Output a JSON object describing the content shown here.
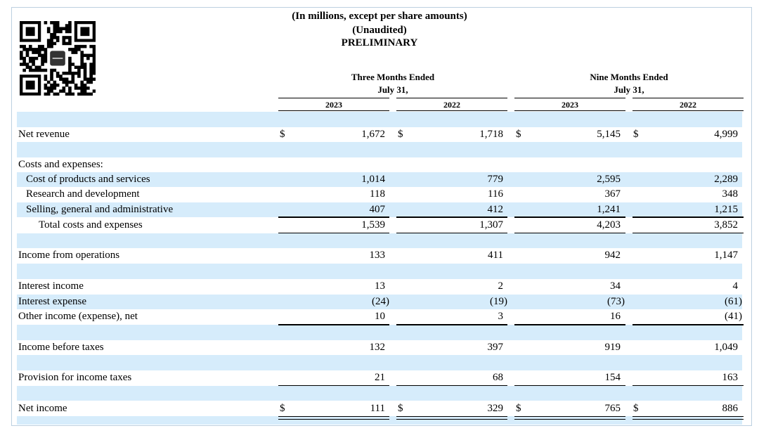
{
  "header": {
    "line1": "(In millions, except per share amounts)",
    "line2": "(Unaudited)",
    "line3": "PRELIMINARY"
  },
  "columns": {
    "three_months": "Three Months Ended",
    "three_months_date": "July 31,",
    "nine_months": "Nine Months Ended",
    "nine_months_date": "July 31,",
    "years": [
      "2023",
      "2022",
      "2023",
      "2022"
    ]
  },
  "currency_symbol": "$",
  "rows": [
    {
      "label": "Net revenue",
      "values": [
        "1,672",
        "1,718",
        "5,145",
        "4,999"
      ]
    },
    {
      "label": "Costs and expenses:"
    },
    {
      "label": "Cost of products and services",
      "values": [
        "1,014",
        "779",
        "2,595",
        "2,289"
      ]
    },
    {
      "label": "Research and development",
      "values": [
        "118",
        "116",
        "367",
        "348"
      ]
    },
    {
      "label": "Selling, general and administrative",
      "values": [
        "407",
        "412",
        "1,241",
        "1,215"
      ]
    },
    {
      "label": "Total costs and expenses",
      "values": [
        "1,539",
        "1,307",
        "4,203",
        "3,852"
      ]
    },
    {
      "label": "Income from operations",
      "values": [
        "133",
        "411",
        "942",
        "1,147"
      ]
    },
    {
      "label": "Interest income",
      "values": [
        "13",
        "2",
        "34",
        "4"
      ]
    },
    {
      "label": "Interest expense",
      "values": [
        "(24)",
        "(19)",
        "(73)",
        "(61)"
      ]
    },
    {
      "label": "Other income (expense), net",
      "values": [
        "10",
        "3",
        "16",
        "(41)"
      ]
    },
    {
      "label": "Income before taxes",
      "values": [
        "132",
        "397",
        "919",
        "1,049"
      ]
    },
    {
      "label": "Provision for income taxes",
      "values": [
        "21",
        "68",
        "154",
        "163"
      ]
    },
    {
      "label": "Net income",
      "values": [
        "111",
        "329",
        "765",
        "886"
      ]
    }
  ],
  "colors": {
    "band": "#d6ecfb",
    "frame": "#bcd0e0"
  }
}
